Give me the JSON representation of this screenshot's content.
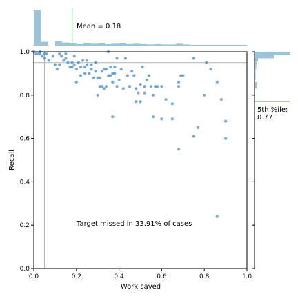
{
  "chart_data": {
    "type": "scatter",
    "xlabel": "Work saved",
    "ylabel": "Recall",
    "xlim": [
      0,
      1
    ],
    "ylim": [
      0,
      1
    ],
    "x_ticks": [
      "0.0",
      "0.2",
      "0.4",
      "0.6",
      "0.8",
      "1.0"
    ],
    "y_ticks": [
      "0.0",
      "0.2",
      "0.4",
      "0.6",
      "0.8",
      "1.0"
    ],
    "grid": false,
    "colors": {
      "points": "#3d85c6",
      "histogram": "#9dc3d9",
      "mean_line": "#8fd18f",
      "reference_lines": "#b0b0b0"
    },
    "reference_lines": {
      "x": 0.05,
      "y": 0.95
    },
    "annotation": "Target missed in 33.91% of cases",
    "mean_work_saved": 0.18,
    "mean_label": "Mean = 0.18",
    "recall_5th_percentile": 0.77,
    "percentile_label": "5th %ile:",
    "percentile_value": "0.77",
    "points": [
      [
        0.0,
        1.0
      ],
      [
        0.01,
        0.99
      ],
      [
        0.02,
        0.99
      ],
      [
        0.03,
        1.0
      ],
      [
        0.03,
        0.99
      ],
      [
        0.04,
        0.98
      ],
      [
        0.05,
        0.99
      ],
      [
        0.05,
        0.97
      ],
      [
        0.06,
        0.99
      ],
      [
        0.07,
        0.96
      ],
      [
        0.09,
        0.98
      ],
      [
        0.1,
        0.94
      ],
      [
        0.11,
        0.92
      ],
      [
        0.12,
        0.94
      ],
      [
        0.12,
        0.99
      ],
      [
        0.13,
        0.98
      ],
      [
        0.14,
        0.96
      ],
      [
        0.15,
        0.97
      ],
      [
        0.15,
        0.99
      ],
      [
        0.16,
        0.95
      ],
      [
        0.17,
        0.93
      ],
      [
        0.18,
        0.95
      ],
      [
        0.18,
        0.93
      ],
      [
        0.19,
        0.94
      ],
      [
        0.19,
        0.98
      ],
      [
        0.2,
        0.92
      ],
      [
        0.2,
        0.86
      ],
      [
        0.21,
        0.95
      ],
      [
        0.22,
        0.93
      ],
      [
        0.22,
        0.89
      ],
      [
        0.23,
        0.96
      ],
      [
        0.24,
        0.93
      ],
      [
        0.24,
        0.9
      ],
      [
        0.25,
        0.94
      ],
      [
        0.25,
        0.96
      ],
      [
        0.26,
        0.9
      ],
      [
        0.27,
        0.92
      ],
      [
        0.27,
        0.94
      ],
      [
        0.28,
        0.88
      ],
      [
        0.29,
        0.95
      ],
      [
        0.29,
        0.91
      ],
      [
        0.3,
        0.88
      ],
      [
        0.3,
        0.8
      ],
      [
        0.31,
        0.84
      ],
      [
        0.31,
        0.88
      ],
      [
        0.32,
        0.91
      ],
      [
        0.32,
        0.84
      ],
      [
        0.33,
        0.83
      ],
      [
        0.33,
        0.92
      ],
      [
        0.34,
        0.84
      ],
      [
        0.34,
        0.92
      ],
      [
        0.35,
        0.89
      ],
      [
        0.35,
        1.0
      ],
      [
        0.36,
        0.93
      ],
      [
        0.36,
        0.89
      ],
      [
        0.37,
        0.9
      ],
      [
        0.37,
        0.86
      ],
      [
        0.37,
        0.7
      ],
      [
        0.38,
        0.93
      ],
      [
        0.38,
        0.9
      ],
      [
        0.39,
        0.97
      ],
      [
        0.39,
        0.84
      ],
      [
        0.4,
        0.87
      ],
      [
        0.41,
        0.92
      ],
      [
        0.42,
        0.83
      ],
      [
        0.43,
        0.97
      ],
      [
        0.44,
        0.89
      ],
      [
        0.45,
        0.84
      ],
      [
        0.46,
        0.91
      ],
      [
        0.47,
        0.89
      ],
      [
        0.48,
        0.83
      ],
      [
        0.48,
        0.77
      ],
      [
        0.49,
        0.81
      ],
      [
        0.5,
        0.85
      ],
      [
        0.5,
        0.77
      ],
      [
        0.51,
        0.93
      ],
      [
        0.52,
        0.84
      ],
      [
        0.52,
        0.81
      ],
      [
        0.53,
        0.87
      ],
      [
        0.54,
        0.89
      ],
      [
        0.55,
        0.84
      ],
      [
        0.56,
        0.8
      ],
      [
        0.56,
        0.7
      ],
      [
        0.57,
        0.84
      ],
      [
        0.58,
        0.84
      ],
      [
        0.6,
        0.84
      ],
      [
        0.6,
        0.69
      ],
      [
        0.62,
        0.78
      ],
      [
        0.65,
        0.76
      ],
      [
        0.65,
        0.69
      ],
      [
        0.68,
        0.86
      ],
      [
        0.68,
        0.84
      ],
      [
        0.68,
        0.55
      ],
      [
        0.69,
        0.89
      ],
      [
        0.7,
        0.89
      ],
      [
        0.75,
        0.97
      ],
      [
        0.75,
        0.61
      ],
      [
        0.77,
        0.65
      ],
      [
        0.8,
        0.8
      ],
      [
        0.81,
        0.95
      ],
      [
        0.83,
        0.92
      ],
      [
        0.86,
        0.86
      ],
      [
        0.86,
        0.24
      ],
      [
        0.88,
        0.78
      ],
      [
        0.9,
        0.68
      ],
      [
        0.9,
        0.6
      ]
    ],
    "x_hist": [
      0.95,
      0.1,
      0.0,
      0.12,
      0.08,
      0.06,
      0.04,
      0.06,
      0.05,
      0.06,
      0.04,
      0.05,
      0.06,
      0.04,
      0.05,
      0.04,
      0.03,
      0.04,
      0.03,
      0.03,
      0.05,
      0.03,
      0.02,
      0.02,
      0.02,
      0.02,
      0.02,
      0.02,
      0.02,
      0.02
    ],
    "y_hist": [
      {
        "y0": 0.985,
        "y1": 1.0,
        "count": 1.0
      },
      {
        "y0": 0.97,
        "y1": 0.985,
        "count": 0.55
      },
      {
        "y0": 0.955,
        "y1": 0.97,
        "count": 0.1
      },
      {
        "y0": 0.94,
        "y1": 0.955,
        "count": 0.06
      },
      {
        "y0": 0.93,
        "y1": 0.94,
        "count": 0.05
      },
      {
        "y0": 0.92,
        "y1": 0.93,
        "count": 0.05
      },
      {
        "y0": 0.87,
        "y1": 0.92,
        "count": 0.03
      },
      {
        "y0": 0.83,
        "y1": 0.86,
        "count": 0.08
      }
    ]
  }
}
